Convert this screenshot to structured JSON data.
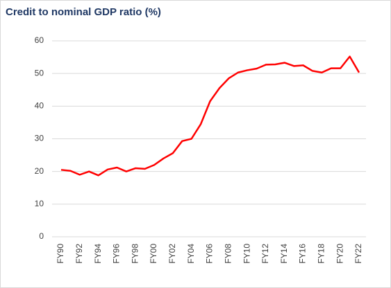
{
  "chart_data": {
    "type": "line",
    "title": "Credit to nominal GDP ratio (%)",
    "categories": [
      "FY90",
      null,
      "FY92",
      null,
      "FY94",
      null,
      "FY96",
      null,
      "FY98",
      null,
      "FY00",
      null,
      "FY02",
      null,
      "FY04",
      null,
      "FY06",
      null,
      "FY08",
      null,
      "FY10",
      null,
      "FY12",
      null,
      "FY14",
      null,
      "FY16",
      null,
      "FY18",
      null,
      "FY20",
      null,
      "FY22"
    ],
    "series": [
      {
        "name": "Credit to nominal GDP ratio",
        "color": "#ff0000",
        "values": [
          20.5,
          20.2,
          19,
          20,
          18.8,
          20.6,
          21.2,
          20,
          21,
          20.8,
          22,
          24,
          25.6,
          29.3,
          30,
          34.5,
          41.5,
          45.5,
          48.5,
          50.3,
          51,
          51.5,
          52.7,
          52.8,
          53.3,
          52.3,
          52.5,
          50.8,
          50.3,
          51.6,
          51.6,
          55.2,
          50.3
        ]
      }
    ],
    "ylim": [
      0,
      60
    ],
    "yticks": [
      0,
      10,
      20,
      30,
      40,
      50,
      60
    ],
    "grid": true
  }
}
